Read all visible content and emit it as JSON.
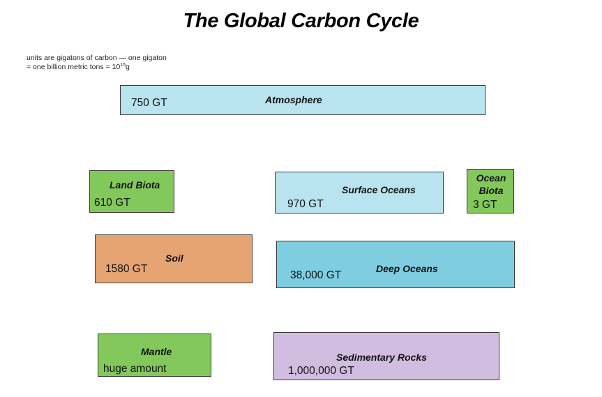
{
  "title": "The Global Carbon Cycle",
  "note": {
    "line1": "units are gigatons of carbon — one gigaton",
    "line2_prefix": "= one billion metric tons = 10",
    "line2_exponent": "15",
    "line2_suffix": "g"
  },
  "reservoirs": {
    "atmosphere": {
      "name": "Atmosphere",
      "amount": "750 GT",
      "color": "#b9e3ee"
    },
    "land_biota": {
      "name": "Land Biota",
      "amount": "610 GT",
      "color": "#83c85a"
    },
    "surface_oceans": {
      "name": "Surface Oceans",
      "amount": "970 GT",
      "color": "#b9e3ee"
    },
    "ocean_biota": {
      "name": "Ocean Biota",
      "amount": "3 GT",
      "color": "#83c85a"
    },
    "soil": {
      "name": "Soil",
      "amount": "1580 GT",
      "color": "#e6a472"
    },
    "deep_oceans": {
      "name": "Deep Oceans",
      "amount": "38,000 GT",
      "color": "#7ecde1"
    },
    "mantle": {
      "name": "Mantle",
      "amount": "huge amount",
      "color": "#83c85a"
    },
    "sedimentary_rocks": {
      "name": "Sedimentary Rocks",
      "amount": "1,000,000 GT",
      "color": "#d1bddf"
    }
  }
}
